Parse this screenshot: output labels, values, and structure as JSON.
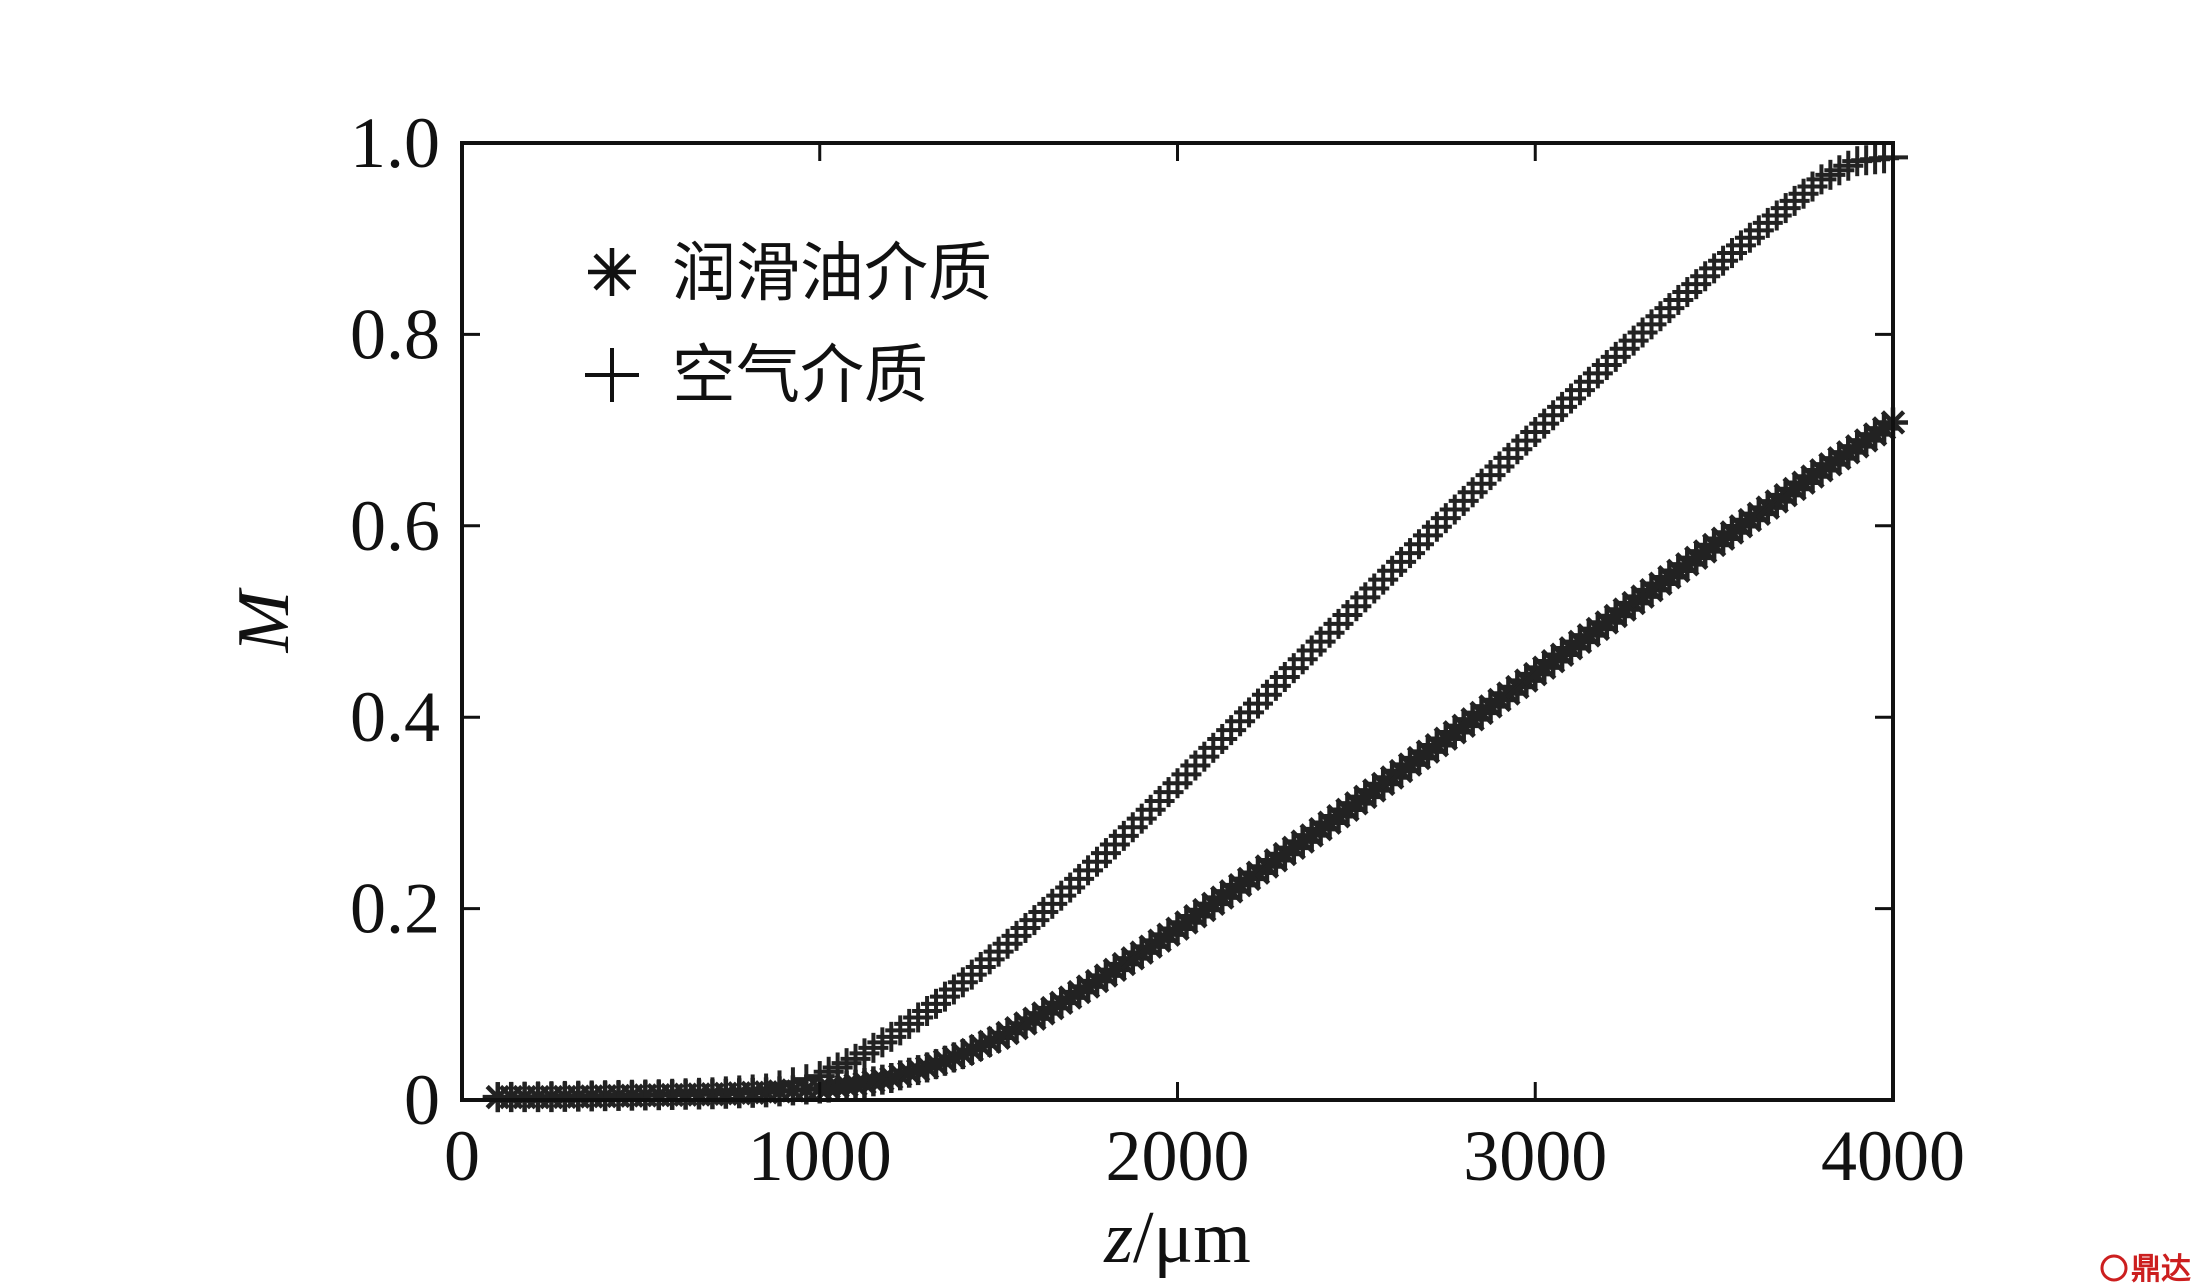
{
  "chart_data": {
    "type": "scatter",
    "title": "",
    "xlabel_var": "z",
    "xlabel_unit": "/μm",
    "ylabel": "M",
    "xlim": [
      0,
      4000
    ],
    "ylim": [
      0,
      1.0
    ],
    "grid": false,
    "legend_position": "top-left",
    "x_ticks": [
      0,
      1000,
      2000,
      3000,
      4000
    ],
    "x_tick_labels": [
      "0",
      "1000",
      "2000",
      "3000",
      "4000"
    ],
    "y_ticks": [
      0,
      0.2,
      0.4,
      0.6,
      0.8,
      1.0
    ],
    "y_tick_labels": [
      "0",
      "0.2",
      "0.4",
      "0.6",
      "0.8",
      "1.0"
    ],
    "series": [
      {
        "name": "润滑油介质",
        "marker": "asterisk",
        "color": "#222222",
        "points": [
          [
            100,
            0.003
          ],
          [
            250,
            0.003
          ],
          [
            400,
            0.004
          ],
          [
            550,
            0.005
          ],
          [
            700,
            0.006
          ],
          [
            850,
            0.008
          ],
          [
            1000,
            0.012
          ],
          [
            1100,
            0.016
          ],
          [
            1200,
            0.023
          ],
          [
            1300,
            0.034
          ],
          [
            1400,
            0.048
          ],
          [
            1500,
            0.065
          ],
          [
            1600,
            0.085
          ],
          [
            1700,
            0.107
          ],
          [
            1800,
            0.13
          ],
          [
            1900,
            0.154
          ],
          [
            2000,
            0.179
          ],
          [
            2100,
            0.205
          ],
          [
            2200,
            0.231
          ],
          [
            2300,
            0.257
          ],
          [
            2400,
            0.283
          ],
          [
            2500,
            0.31
          ],
          [
            2600,
            0.337
          ],
          [
            2700,
            0.364
          ],
          [
            2800,
            0.391
          ],
          [
            2900,
            0.418
          ],
          [
            3000,
            0.445
          ],
          [
            3100,
            0.472
          ],
          [
            3200,
            0.499
          ],
          [
            3300,
            0.526
          ],
          [
            3400,
            0.553
          ],
          [
            3500,
            0.58
          ],
          [
            3600,
            0.606
          ],
          [
            3700,
            0.632
          ],
          [
            3800,
            0.658
          ],
          [
            3900,
            0.683
          ],
          [
            4000,
            0.708
          ]
        ]
      },
      {
        "name": "空气介质",
        "marker": "plus",
        "color": "#222222",
        "points": [
          [
            100,
            0.003
          ],
          [
            250,
            0.004
          ],
          [
            400,
            0.005
          ],
          [
            550,
            0.006
          ],
          [
            700,
            0.008
          ],
          [
            850,
            0.012
          ],
          [
            1000,
            0.025
          ],
          [
            1100,
            0.043
          ],
          [
            1200,
            0.066
          ],
          [
            1300,
            0.093
          ],
          [
            1400,
            0.123
          ],
          [
            1500,
            0.155
          ],
          [
            1600,
            0.188
          ],
          [
            1700,
            0.222
          ],
          [
            1800,
            0.258
          ],
          [
            1900,
            0.294
          ],
          [
            2000,
            0.331
          ],
          [
            2100,
            0.368
          ],
          [
            2200,
            0.405
          ],
          [
            2300,
            0.442
          ],
          [
            2400,
            0.479
          ],
          [
            2500,
            0.516
          ],
          [
            2600,
            0.553
          ],
          [
            2700,
            0.59
          ],
          [
            2800,
            0.626
          ],
          [
            2900,
            0.662
          ],
          [
            3000,
            0.698
          ],
          [
            3100,
            0.733
          ],
          [
            3200,
            0.768
          ],
          [
            3300,
            0.802
          ],
          [
            3400,
            0.836
          ],
          [
            3500,
            0.869
          ],
          [
            3600,
            0.901
          ],
          [
            3700,
            0.932
          ],
          [
            3800,
            0.962
          ],
          [
            3900,
            0.981
          ],
          [
            4000,
            0.985
          ]
        ]
      }
    ]
  },
  "watermark": {
    "text": "鼎达信",
    "color": "#cc1f1f"
  }
}
